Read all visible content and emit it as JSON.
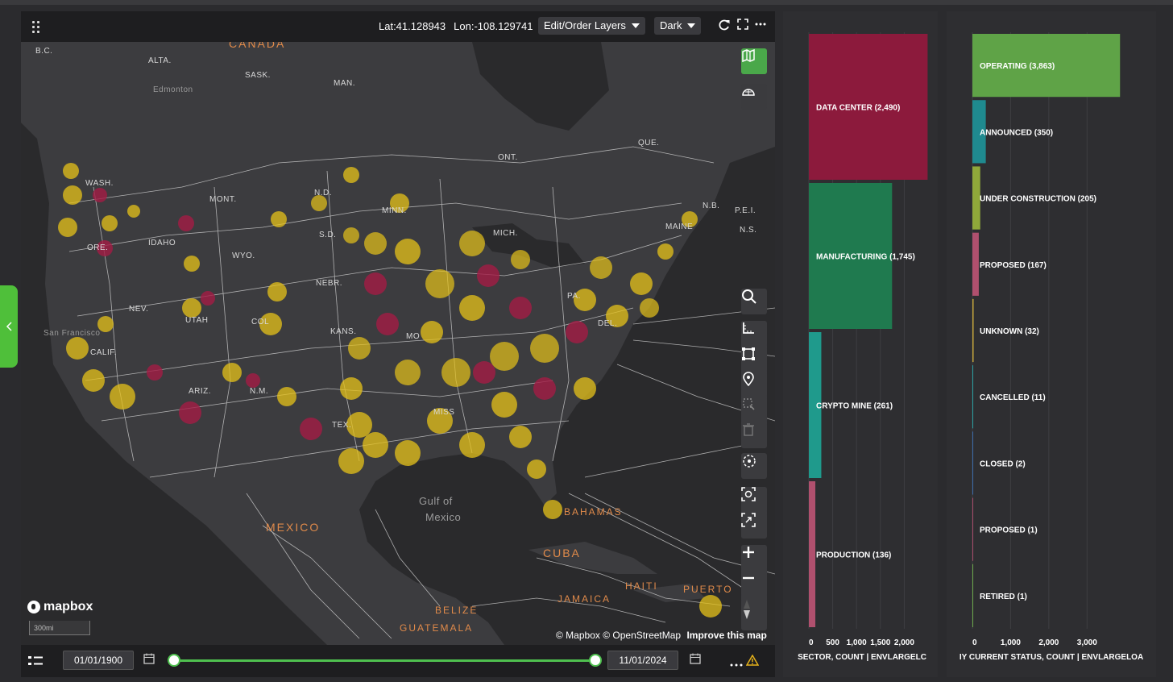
{
  "map": {
    "coords": {
      "lat": "Lat:41.128943",
      "lon": "Lon:-108.129741"
    },
    "layers_dropdown": "Edit/Order Layers",
    "style_dropdown": "Dark",
    "labels": {
      "canada": "CANADA",
      "bc": "B.C.",
      "alta": "ALTA.",
      "sask": "SASK.",
      "man": "MAN.",
      "edmonton": "Edmonton",
      "que": "QUE.",
      "ont": "ONT.",
      "nb": "N.B.",
      "pei": "P.E.I.",
      "ns": "N.S.",
      "wash": "WASH.",
      "mont": "MONT.",
      "nd": "N.D.",
      "minn": "MINN.",
      "idaho": "IDAHO",
      "ore": "ORE.",
      "wyo": "WYO.",
      "sd": "S.D.",
      "mich": "MICH.",
      "maine": "MAINE",
      "nebr": "NEBR.",
      "nev": "NEV.",
      "utah": "UTAH",
      "col": "COL",
      "kans": "KANS.",
      "mo": "MO",
      "pa": "PA.",
      "del": "DEL.",
      "sf": "San Francisco",
      "calif": "CALIF.",
      "ariz": "ARIZ.",
      "nm": "N.M.",
      "tex": "TEX.",
      "miss": "MISS",
      "gulf": "Gulf of",
      "mexico_water": "Mexico",
      "mexico": "MEXICO",
      "bahamas": "BAHAMAS",
      "cuba": "CUBA",
      "haiti": "HAITI",
      "puerto": "PUERTO",
      "jamaica": "JAMAICA",
      "belize": "BELIZE",
      "guatemala": "GUATEMALA"
    },
    "mapbox_logo": "mapbox",
    "scale": "300mi",
    "attribution": {
      "mapbox": "© Mapbox",
      "osm": "© OpenStreetMap",
      "improve": "Improve this map"
    },
    "date_start": "01/01/1900",
    "date_end": "11/01/2024",
    "slider_range": [
      0.0,
      1.0
    ]
  },
  "colors": {
    "operating": "#5fa347",
    "data_center": "#8c1a3c",
    "manufacturing": "#1f7a4f",
    "crypto": "#1d8a80",
    "production": "#b0506e",
    "dots_yellow": "#e6c21a",
    "dots_red": "#a31b45"
  },
  "chart_data": [
    {
      "type": "bar",
      "orientation": "horizontal",
      "categories": [
        "DATA CENTER (2,490)",
        "MANUFACTURING (1,745)",
        "CRYPTO MINE (261)",
        "PRODUCTION (136)"
      ],
      "values": [
        2490,
        1745,
        261,
        136
      ],
      "colors": [
        "#8c1a3c",
        "#1f7a4f",
        "#1f9a8c",
        "#b0506e"
      ],
      "x_ticks": [
        "0",
        "500",
        "1,000",
        "1,500",
        "2,000"
      ],
      "xlim": [
        0,
        2500
      ],
      "xlabel": "SECTOR, COUNT | ENVLARGELC"
    },
    {
      "type": "bar",
      "orientation": "horizontal",
      "categories": [
        "OPERATING (3,863)",
        "ANNOUNCED (350)",
        "UNDER CONSTRUCTION (205)",
        "PROPOSED (167)",
        "UNKNOWN (32)",
        "CANCELLED (11)",
        "CLOSED (2)",
        "PROPOSED (1)",
        "RETIRED (1)"
      ],
      "values": [
        3863,
        350,
        205,
        167,
        32,
        11,
        2,
        1,
        1
      ],
      "colors": [
        "#5fa347",
        "#1f8a8f",
        "#8fa83a",
        "#b0506e",
        "#c2a33a",
        "#2aa0a0",
        "#3a6aa8",
        "#a84a6a",
        "#6aa84a"
      ],
      "x_ticks": [
        "0",
        "1,000",
        "2,000",
        "3,000"
      ],
      "xlim": [
        0,
        3900
      ],
      "xlabel": "IY CURRENT STATUS, COUNT | ENVLARGELOA"
    }
  ]
}
